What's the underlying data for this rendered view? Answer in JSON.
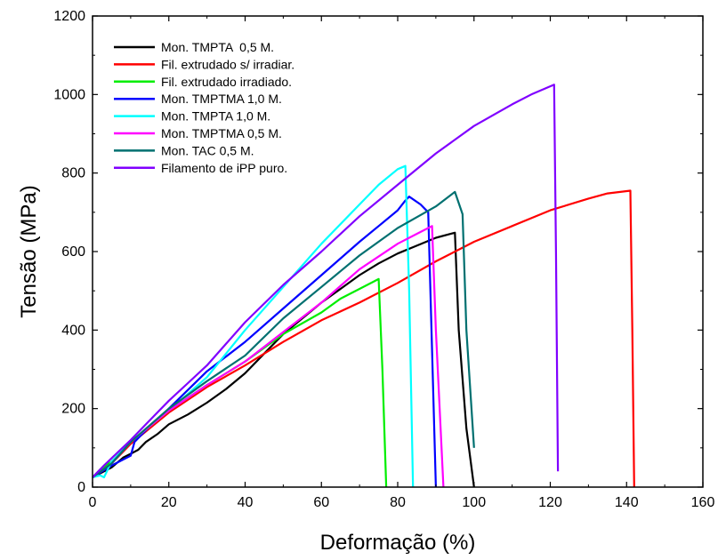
{
  "chart_data": {
    "type": "line",
    "xlabel": "Deformação (%)",
    "ylabel": "Tensão (MPa)",
    "xlim": [
      0,
      160
    ],
    "ylim": [
      0,
      1200
    ],
    "xticks": [
      0,
      20,
      40,
      60,
      80,
      100,
      120,
      140,
      160
    ],
    "yticks": [
      0,
      200,
      400,
      600,
      800,
      1000,
      1200
    ],
    "legend_position": "top-left",
    "grid": false,
    "series": [
      {
        "name": "Mon. TMPTA  0,5 M.",
        "color": "#000000",
        "points": [
          [
            0,
            25
          ],
          [
            3,
            40
          ],
          [
            5,
            50
          ],
          [
            8,
            75
          ],
          [
            10,
            85
          ],
          [
            12,
            95
          ],
          [
            14,
            115
          ],
          [
            17,
            135
          ],
          [
            20,
            160
          ],
          [
            25,
            185
          ],
          [
            30,
            215
          ],
          [
            35,
            250
          ],
          [
            40,
            290
          ],
          [
            45,
            340
          ],
          [
            50,
            390
          ],
          [
            55,
            430
          ],
          [
            60,
            470
          ],
          [
            65,
            505
          ],
          [
            70,
            540
          ],
          [
            75,
            570
          ],
          [
            80,
            595
          ],
          [
            85,
            615
          ],
          [
            90,
            635
          ],
          [
            95,
            648
          ],
          [
            96,
            400
          ],
          [
            98,
            150
          ],
          [
            100,
            0
          ]
        ]
      },
      {
        "name": "Fil. extrudado s/ irradiar.",
        "color": "#ff0000",
        "points": [
          [
            0,
            25
          ],
          [
            5,
            60
          ],
          [
            10,
            110
          ],
          [
            20,
            190
          ],
          [
            30,
            255
          ],
          [
            40,
            310
          ],
          [
            50,
            370
          ],
          [
            60,
            425
          ],
          [
            70,
            470
          ],
          [
            80,
            520
          ],
          [
            90,
            575
          ],
          [
            100,
            625
          ],
          [
            110,
            665
          ],
          [
            120,
            705
          ],
          [
            130,
            735
          ],
          [
            135,
            748
          ],
          [
            141,
            755
          ],
          [
            141.5,
            400
          ],
          [
            142,
            0
          ]
        ]
      },
      {
        "name": "Fil. extrudado irradiado.",
        "color": "#00ee00",
        "points": [
          [
            0,
            25
          ],
          [
            2,
            45
          ],
          [
            5,
            65
          ],
          [
            10,
            115
          ],
          [
            20,
            195
          ],
          [
            30,
            260
          ],
          [
            40,
            320
          ],
          [
            50,
            390
          ],
          [
            60,
            445
          ],
          [
            65,
            480
          ],
          [
            70,
            505
          ],
          [
            75,
            530
          ],
          [
            76,
            300
          ],
          [
            77,
            0
          ]
        ]
      },
      {
        "name": "Mon. TMPTMA 1,0 M.",
        "color": "#0000ff",
        "points": [
          [
            0,
            25
          ],
          [
            5,
            55
          ],
          [
            10,
            80
          ],
          [
            11,
            115
          ],
          [
            15,
            155
          ],
          [
            20,
            200
          ],
          [
            30,
            295
          ],
          [
            40,
            370
          ],
          [
            50,
            455
          ],
          [
            60,
            540
          ],
          [
            70,
            625
          ],
          [
            75,
            665
          ],
          [
            80,
            705
          ],
          [
            82,
            730
          ],
          [
            83,
            740
          ],
          [
            86,
            720
          ],
          [
            88,
            700
          ],
          [
            89,
            350
          ],
          [
            90,
            0
          ]
        ]
      },
      {
        "name": "Mon. TMPTA 1,0 M.",
        "color": "#00ffff",
        "points": [
          [
            0,
            25
          ],
          [
            2,
            30
          ],
          [
            3,
            25
          ],
          [
            5,
            65
          ],
          [
            10,
            115
          ],
          [
            20,
            195
          ],
          [
            30,
            280
          ],
          [
            40,
            400
          ],
          [
            50,
            510
          ],
          [
            60,
            620
          ],
          [
            70,
            720
          ],
          [
            75,
            770
          ],
          [
            80,
            810
          ],
          [
            82,
            818
          ],
          [
            83,
            500
          ],
          [
            84,
            0
          ]
        ]
      },
      {
        "name": "Mon. TMPTMA 0,5 M.",
        "color": "#ff00ff",
        "points": [
          [
            0,
            25
          ],
          [
            5,
            60
          ],
          [
            10,
            115
          ],
          [
            20,
            195
          ],
          [
            30,
            260
          ],
          [
            40,
            320
          ],
          [
            50,
            395
          ],
          [
            60,
            470
          ],
          [
            70,
            555
          ],
          [
            80,
            620
          ],
          [
            85,
            645
          ],
          [
            89,
            665
          ],
          [
            90,
            400
          ],
          [
            92,
            0
          ]
        ]
      },
      {
        "name": "Mon. TAC 0,5 M.",
        "color": "#007070",
        "points": [
          [
            0,
            25
          ],
          [
            5,
            60
          ],
          [
            10,
            115
          ],
          [
            20,
            200
          ],
          [
            30,
            270
          ],
          [
            40,
            335
          ],
          [
            50,
            430
          ],
          [
            60,
            510
          ],
          [
            70,
            590
          ],
          [
            80,
            660
          ],
          [
            90,
            715
          ],
          [
            95,
            752
          ],
          [
            97,
            695
          ],
          [
            98,
            400
          ],
          [
            100,
            100
          ]
        ]
      },
      {
        "name": "Filamento de iPP puro.",
        "color": "#8000ff",
        "points": [
          [
            0,
            25
          ],
          [
            3,
            55
          ],
          [
            10,
            120
          ],
          [
            15,
            170
          ],
          [
            20,
            220
          ],
          [
            25,
            265
          ],
          [
            30,
            310
          ],
          [
            40,
            420
          ],
          [
            50,
            515
          ],
          [
            60,
            600
          ],
          [
            70,
            690
          ],
          [
            80,
            770
          ],
          [
            90,
            850
          ],
          [
            100,
            920
          ],
          [
            110,
            975
          ],
          [
            115,
            1000
          ],
          [
            121,
            1025
          ],
          [
            121.5,
            600
          ],
          [
            122,
            40
          ]
        ]
      }
    ]
  }
}
